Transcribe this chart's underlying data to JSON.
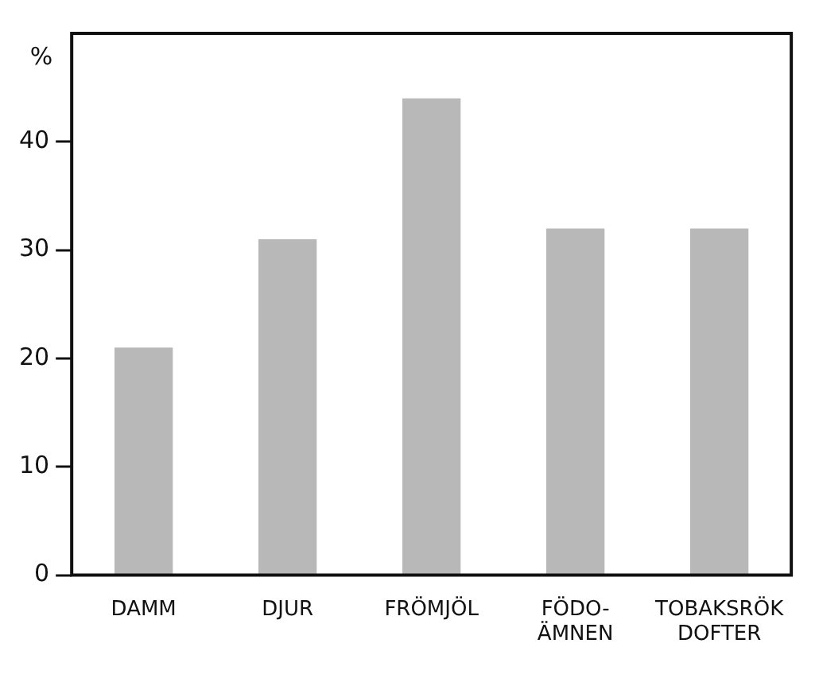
{
  "chart_data": {
    "type": "bar",
    "ylabel": "%",
    "categories": [
      "DAMM",
      "DJUR",
      "FRÖMJÖL",
      "FÖDO-\nÄMNEN",
      "TOBAKSRÖK\nDOFTER"
    ],
    "values": [
      21,
      31,
      44,
      32,
      32
    ],
    "color": "#b8b8b8",
    "ylim": [
      0,
      50
    ],
    "yticks": [
      0,
      10,
      20,
      30,
      40
    ],
    "grid": false,
    "legend": false
  }
}
